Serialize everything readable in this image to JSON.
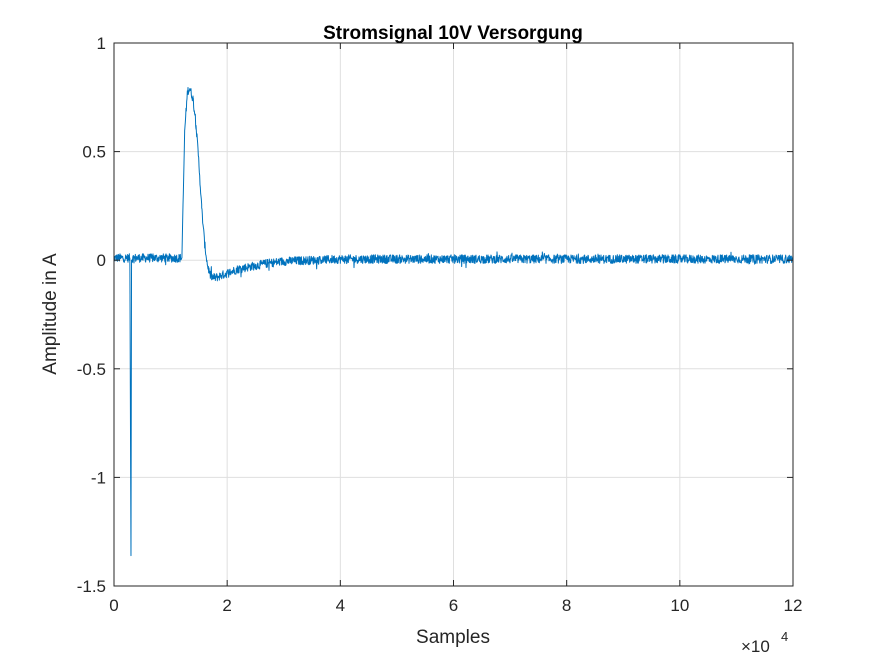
{
  "chart_data": {
    "type": "line",
    "title": "Stromsignal 10V Versorgung",
    "xlabel": "Samples",
    "ylabel": "Amplitude in A",
    "xlim": [
      0,
      120000
    ],
    "ylim": [
      -1.5,
      1
    ],
    "x_ticks": [
      0,
      20000,
      40000,
      60000,
      80000,
      100000,
      120000
    ],
    "x_tick_labels": [
      "0",
      "2",
      "4",
      "6",
      "8",
      "10",
      "12"
    ],
    "x_exponent_label": "×10",
    "x_exponent_power": "4",
    "y_ticks": [
      -1.5,
      -1,
      -0.5,
      0,
      0.5,
      1
    ],
    "y_tick_labels": [
      "-1.5",
      "-1",
      "-0.5",
      "0",
      "0.5",
      "1"
    ],
    "grid": true,
    "colors": {
      "series": "#0072bd",
      "grid": "#dfdfdf",
      "axis": "#262626"
    },
    "series": [
      {
        "x": [
          0,
          2800,
          3000,
          3100,
          3300,
          12000,
          12500,
          13000,
          13400,
          14000,
          14500,
          15000,
          15500,
          16000,
          16500,
          17000,
          17500,
          18000,
          19000,
          20000,
          22000,
          24000,
          27000,
          30000,
          35000,
          40000,
          50000,
          60000,
          80000,
          100000,
          120000
        ],
        "y": [
          0.01,
          0.01,
          -1.36,
          0.0,
          0.01,
          0.01,
          0.6,
          0.78,
          0.79,
          0.74,
          0.62,
          0.45,
          0.24,
          0.08,
          -0.02,
          -0.07,
          -0.08,
          -0.08,
          -0.07,
          -0.06,
          -0.04,
          -0.03,
          -0.015,
          -0.005,
          0.0,
          0.005,
          0.005,
          0.005,
          0.005,
          0.005,
          0.005
        ],
        "noise_amplitude": 0.02
      }
    ]
  }
}
